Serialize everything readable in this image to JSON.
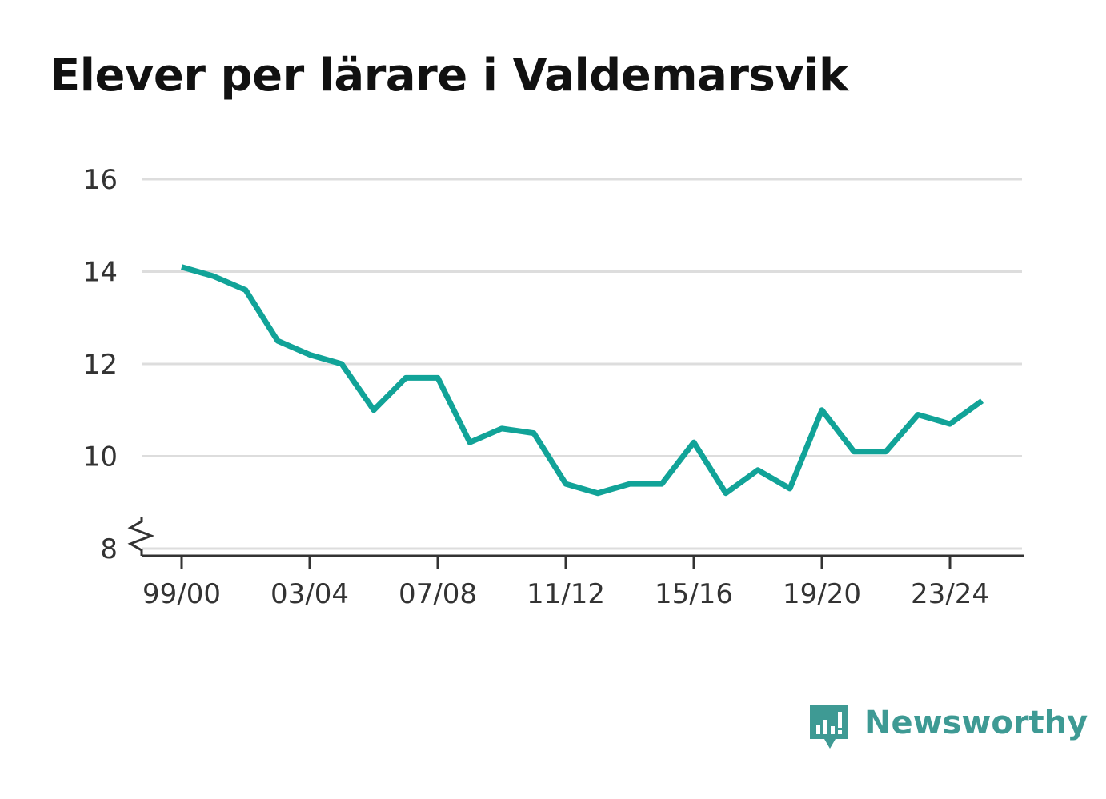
{
  "title": "Elever per lärare i Valdemarsvik",
  "brand": {
    "name": "Newsworthy",
    "icon": "newsworthy-logo-icon",
    "color": "#3e9a94"
  },
  "colors": {
    "line": "#11a398",
    "grid": "#dddddd",
    "axis": "#333333"
  },
  "chart_data": {
    "type": "line",
    "title": "Elever per lärare i Valdemarsvik",
    "xlabel": "",
    "ylabel": "",
    "ylim": [
      8,
      16
    ],
    "y_ticks": [
      8,
      10,
      12,
      14,
      16
    ],
    "y_axis_break": true,
    "grid": true,
    "x_tick_labels": [
      "99/00",
      "03/04",
      "07/08",
      "11/12",
      "15/16",
      "19/20",
      "23/24"
    ],
    "x_tick_index": [
      0,
      4,
      8,
      12,
      16,
      20,
      24
    ],
    "categories": [
      "99/00",
      "00/01",
      "01/02",
      "02/03",
      "03/04",
      "04/05",
      "05/06",
      "06/07",
      "07/08",
      "08/09",
      "09/10",
      "10/11",
      "11/12",
      "12/13",
      "13/14",
      "14/15",
      "15/16",
      "16/17",
      "17/18",
      "18/19",
      "19/20",
      "20/21",
      "21/22",
      "22/23",
      "23/24",
      "24/25"
    ],
    "series": [
      {
        "values": [
          14.1,
          13.9,
          13.6,
          12.5,
          12.2,
          12.0,
          11.0,
          11.7,
          11.7,
          10.3,
          10.6,
          10.5,
          9.4,
          9.2,
          9.4,
          9.4,
          10.3,
          9.2,
          9.7,
          9.3,
          11.0,
          10.1,
          10.1,
          10.9,
          10.7,
          11.2
        ]
      }
    ]
  }
}
